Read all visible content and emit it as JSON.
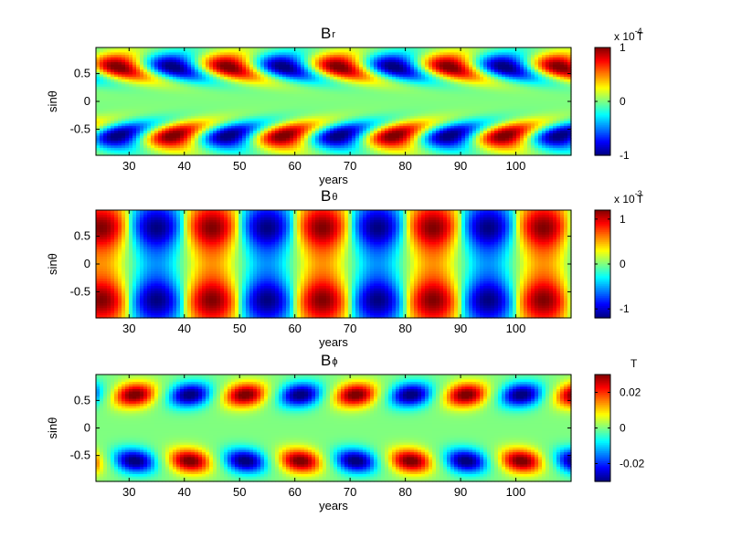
{
  "chart_data": [
    {
      "type": "heatmap",
      "title_main": "B",
      "title_sub": "r",
      "xlabel": "years",
      "ylabel": "sinθ",
      "xlim": [
        24,
        110
      ],
      "ylim": [
        -0.97,
        0.97
      ],
      "x_ticks": [
        30,
        40,
        50,
        60,
        70,
        80,
        90,
        100
      ],
      "x_tick_labels": [
        "30",
        "40",
        "50",
        "60",
        "70",
        "80",
        "90",
        "100"
      ],
      "y_ticks": [
        0.5,
        0,
        -0.5
      ],
      "y_tick_labels": [
        "0.5",
        "0",
        "-0.5"
      ],
      "colorbar": {
        "min": -1,
        "max": 1,
        "ticks": [
          1,
          0,
          -1
        ],
        "tick_labels": [
          "1",
          "0",
          "-1"
        ],
        "unit_prefix": "x 10",
        "unit_exp": "-4",
        "unit": "T"
      },
      "pattern": {
        "period_years": 20,
        "x_offset": 23,
        "lobe_centers_sintheta": [
          0.65,
          -0.65
        ],
        "skew": "tilted drift toward equator",
        "north_south_sign": "opposite"
      }
    },
    {
      "type": "heatmap",
      "title_main": "B",
      "title_sub": "θ",
      "xlabel": "years",
      "ylabel": "sinθ",
      "xlim": [
        24,
        110
      ],
      "ylim": [
        -0.97,
        0.97
      ],
      "x_ticks": [
        30,
        40,
        50,
        60,
        70,
        80,
        90,
        100
      ],
      "x_tick_labels": [
        "30",
        "40",
        "50",
        "60",
        "70",
        "80",
        "90",
        "100"
      ],
      "y_ticks": [
        0.5,
        0,
        -0.5
      ],
      "y_tick_labels": [
        "0.5",
        "0",
        "-0.5"
      ],
      "colorbar": {
        "min": -1.2,
        "max": 1.2,
        "ticks": [
          1,
          0,
          -1
        ],
        "tick_labels": [
          "1",
          "0",
          "-1"
        ],
        "unit_prefix": "x 10",
        "unit_exp": "-3",
        "unit": "T"
      },
      "pattern": {
        "period_years": 20,
        "x_offset": 20,
        "lobe_centers_sintheta": [
          0.65,
          -0.65
        ],
        "skew": "hourglass columns",
        "north_south_sign": "same"
      }
    },
    {
      "type": "heatmap",
      "title_main": "B",
      "title_sub": "ϕ",
      "xlabel": "years",
      "ylabel": "sinθ",
      "xlim": [
        24,
        110
      ],
      "ylim": [
        -0.97,
        0.97
      ],
      "x_ticks": [
        30,
        40,
        50,
        60,
        70,
        80,
        90,
        100
      ],
      "x_tick_labels": [
        "30",
        "40",
        "50",
        "60",
        "70",
        "80",
        "90",
        "100"
      ],
      "y_ticks": [
        0.5,
        0,
        -0.5
      ],
      "y_tick_labels": [
        "0.5",
        "0",
        "-0.5"
      ],
      "colorbar": {
        "min": -0.03,
        "max": 0.03,
        "ticks": [
          0.02,
          0,
          -0.02
        ],
        "tick_labels": [
          "0.02",
          "0",
          "-0.02"
        ],
        "unit_prefix": "",
        "unit_exp": "",
        "unit": "T"
      },
      "pattern": {
        "period_years": 20,
        "x_offset": 26,
        "lobe_centers_sintheta": [
          0.6,
          -0.6
        ],
        "skew": "compact ovals, hemispheres offset half period",
        "north_south_sign": "opposite"
      }
    }
  ]
}
